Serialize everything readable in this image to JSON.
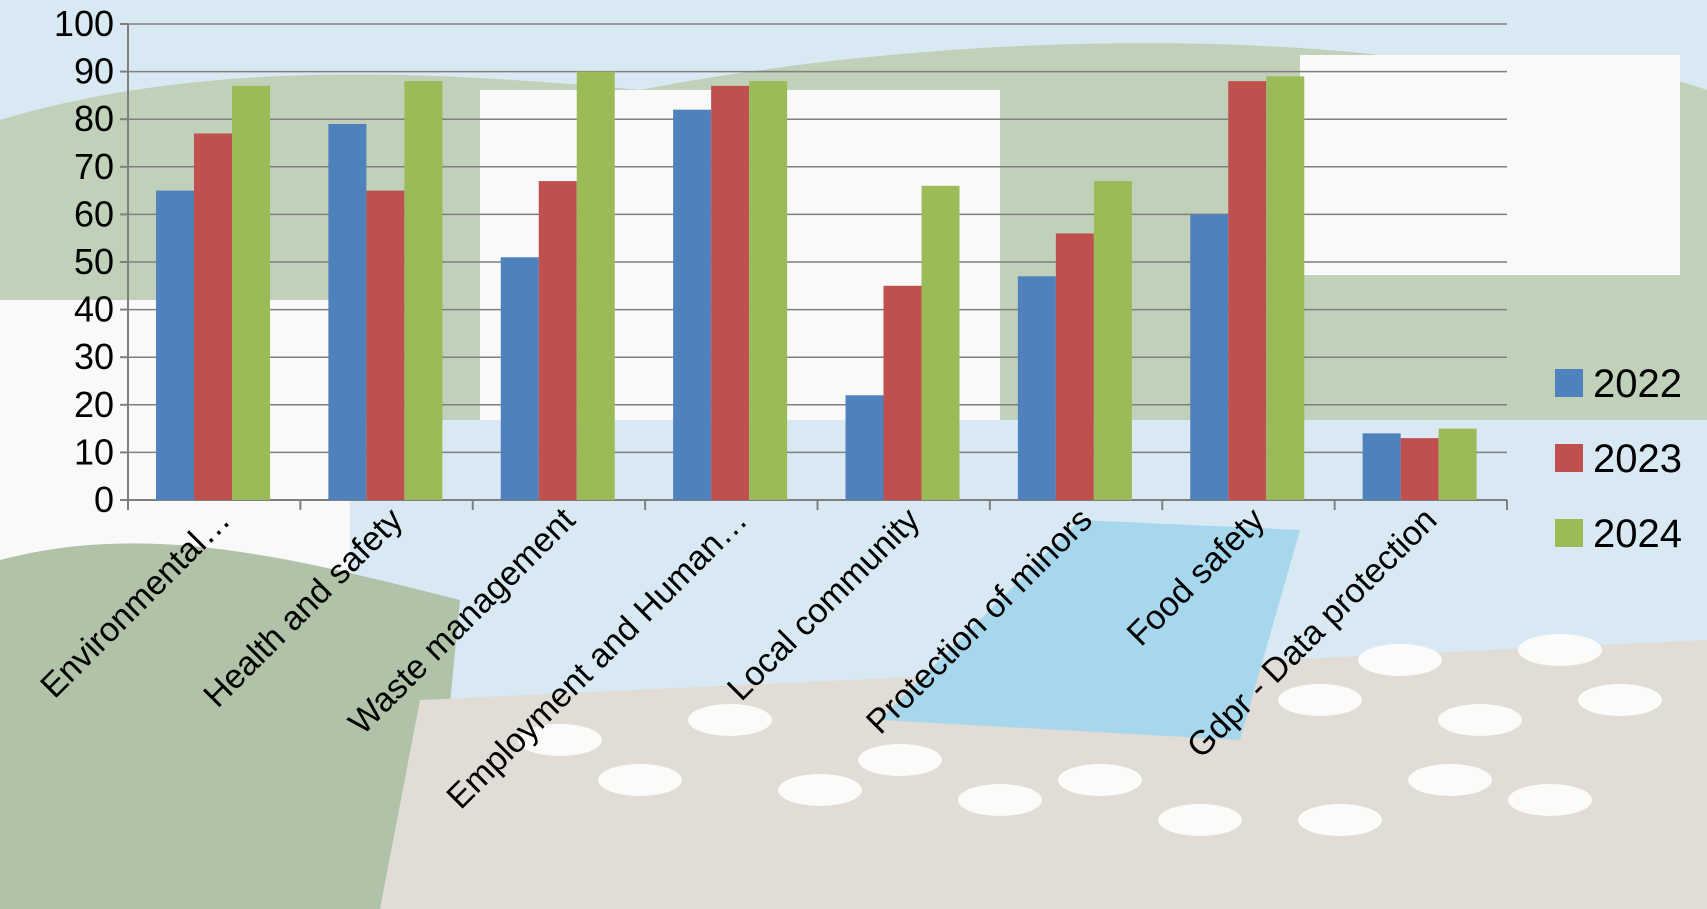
{
  "chart_data": {
    "type": "bar",
    "title": "",
    "xlabel": "",
    "ylabel": "",
    "ylim": [
      0,
      100
    ],
    "yticks": [
      0,
      10,
      20,
      30,
      40,
      50,
      60,
      70,
      80,
      90,
      100
    ],
    "grid": true,
    "legend_position": "right",
    "categories": [
      "Environmental…",
      "Health and safety",
      "Waste management",
      "Employment and Human…",
      "Local community",
      "Protection of minors",
      "Food safety",
      "Gdpr - Data protection"
    ],
    "series": [
      {
        "name": "2022",
        "color": "#4f81bd",
        "values": [
          65,
          79,
          51,
          82,
          22,
          47,
          60,
          14
        ]
      },
      {
        "name": "2023",
        "color": "#c0504d",
        "values": [
          77,
          65,
          67,
          87,
          45,
          56,
          88,
          13
        ]
      },
      {
        "name": "2024",
        "color": "#9bbb59",
        "values": [
          87,
          88,
          90,
          88,
          66,
          67,
          89,
          15
        ]
      }
    ]
  },
  "background": {
    "sky_color": "#b9d7ea",
    "hill_color": "#8fa97e",
    "building_color": "#f2f4f3",
    "pool_color": "#5fb6de",
    "deck_color": "#c9bfb2",
    "tree_color": "#6f9060"
  }
}
